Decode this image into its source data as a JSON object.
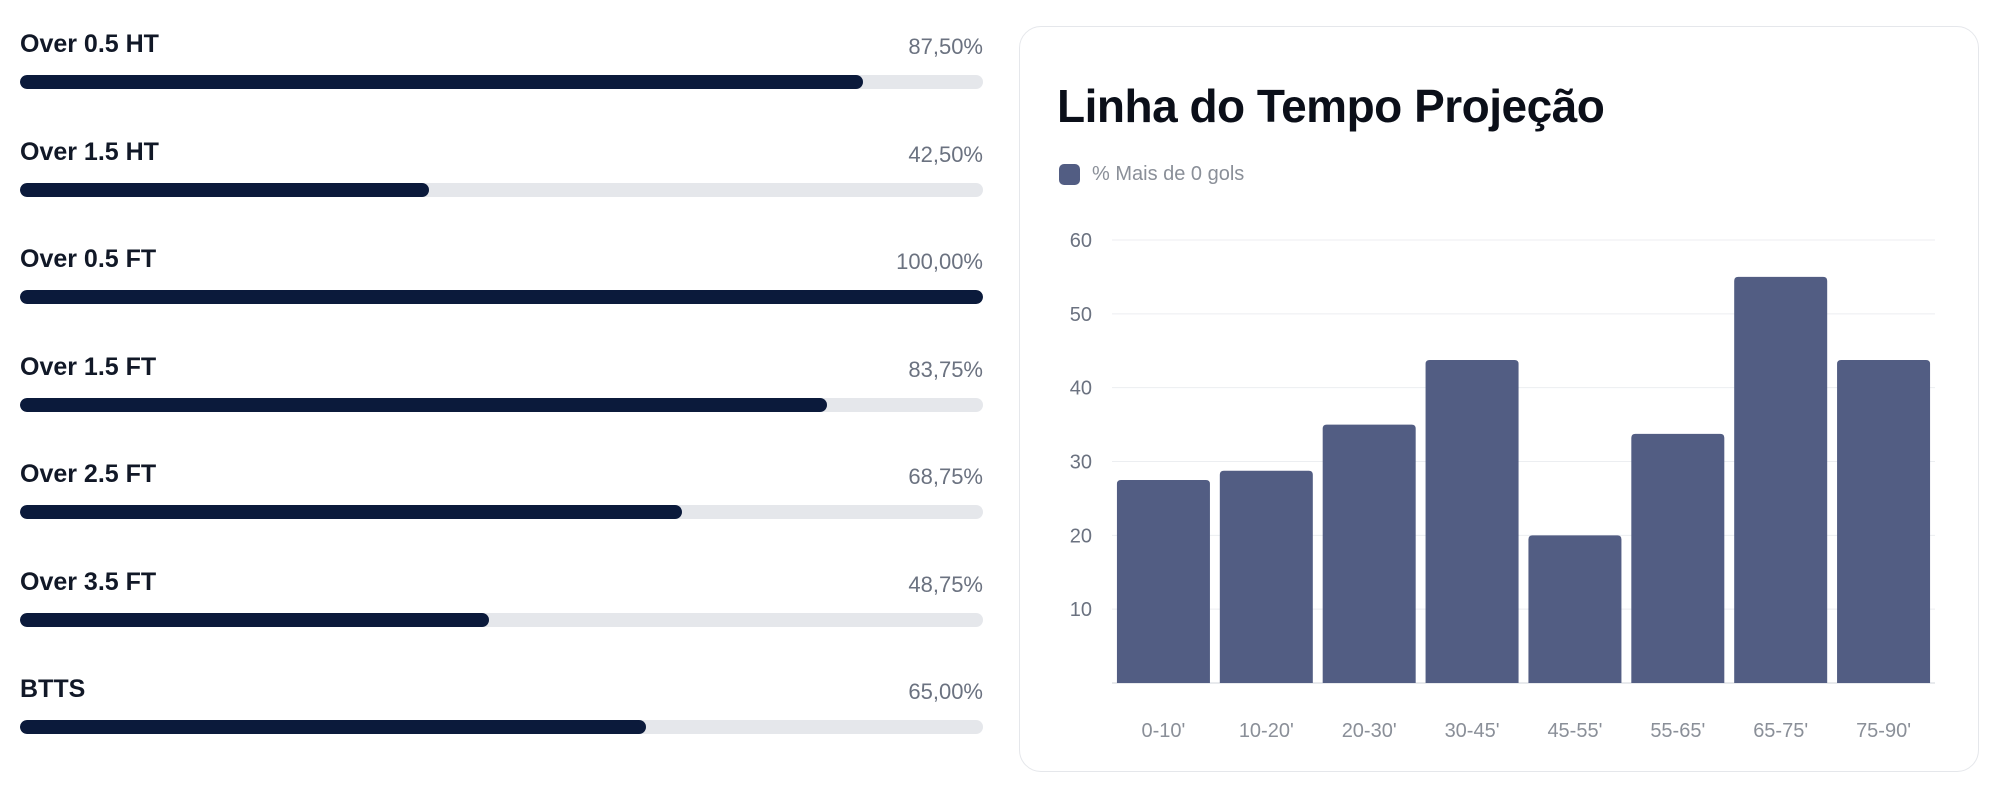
{
  "stats": [
    {
      "label": "Over 0.5 HT",
      "value_text": "87,50%",
      "percent": 87.5
    },
    {
      "label": "Over 1.5 HT",
      "value_text": "42,50%",
      "percent": 42.5
    },
    {
      "label": "Over 0.5 FT",
      "value_text": "100,00%",
      "percent": 100
    },
    {
      "label": "Over 1.5 FT",
      "value_text": "83,75%",
      "percent": 83.75
    },
    {
      "label": "Over 2.5 FT",
      "value_text": "68,75%",
      "percent": 68.75
    },
    {
      "label": "Over 3.5 FT",
      "value_text": "48,75%",
      "percent": 48.75
    },
    {
      "label": "BTTS",
      "value_text": "65,00%",
      "percent": 65
    }
  ],
  "card": {
    "title": "Linha do Tempo Projeção"
  },
  "colors": {
    "bar_fill": "#0b1a3b",
    "track": "#e5e7eb",
    "series": "#525d83"
  },
  "chart_data": {
    "type": "bar",
    "title": "Linha do Tempo Projeção",
    "categories": [
      "0-10'",
      "10-20'",
      "20-30'",
      "30-45'",
      "45-55'",
      "55-65'",
      "65-75'",
      "75-90'"
    ],
    "series": [
      {
        "name": "% Mais de 0 gols",
        "values": [
          27.5,
          28.75,
          35,
          43.75,
          20,
          33.75,
          55,
          43.75
        ]
      }
    ],
    "yticks": [
      10,
      20,
      30,
      40,
      50,
      60
    ],
    "ylim": [
      0,
      60
    ],
    "xlabel": "",
    "ylabel": "",
    "grid": true,
    "legend_position": "top-left"
  }
}
